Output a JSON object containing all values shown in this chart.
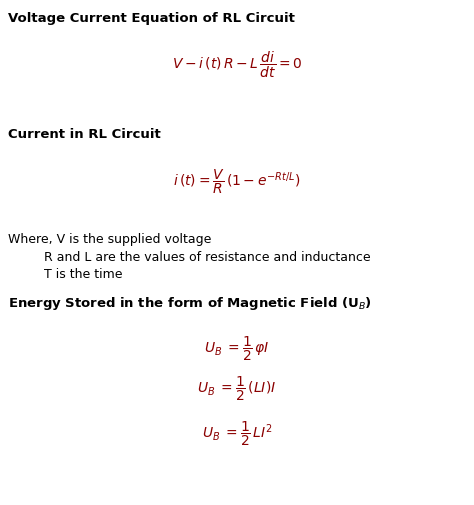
{
  "bg_color": "#ffffff",
  "text_color": "#000000",
  "eq_color": "#8B0000",
  "title1": "Voltage Current Equation of RL Circuit",
  "title2": "Current in RL Circuit",
  "title3": "Energy Stored in the form of Magnetic Field (U$_B$)",
  "eq1": "$V - i\\,(t)\\,R - L\\,\\dfrac{di}{dt} = 0$",
  "eq2": "$i\\,(t) = \\dfrac{V}{R}\\,(1 - e^{-Rt/L})$",
  "where1": "Where, V is the supplied voltage",
  "where2": "         R and L are the values of resistance and inductance",
  "where3": "         T is the time",
  "ub1": "$U_B\\;  =\\dfrac{1}{2}\\,\\varphi I$",
  "ub2": "$U_B\\;  =\\dfrac{1}{2}\\,(LI)I$",
  "ub3": "$U_B\\;  =\\dfrac{1}{2}\\,LI^2$",
  "title_fontsize": 9.5,
  "eq_fontsize": 10,
  "where_fontsize": 9,
  "figwidth": 4.74,
  "figheight": 5.05,
  "dpi": 100
}
